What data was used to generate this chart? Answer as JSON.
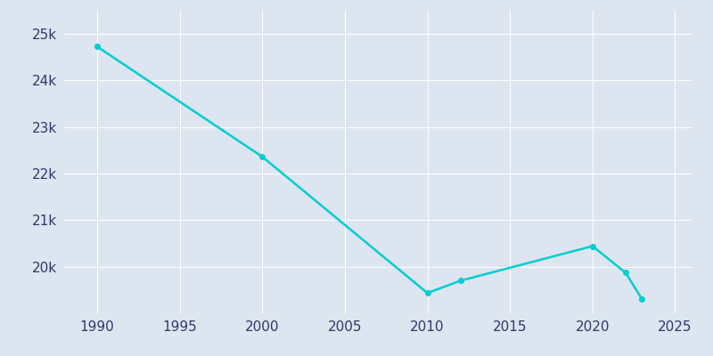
{
  "years": [
    1990,
    2000,
    2010,
    2012,
    2020,
    2022,
    2023
  ],
  "population": [
    24727,
    22362,
    19435,
    19700,
    20442,
    19872,
    19300
  ],
  "line_color": "#00CED1",
  "marker_color": "#00CED1",
  "background_color": "#dce5f0",
  "plot_bg_color": "#dce5f0",
  "grid_color": "#ffffff",
  "xlim": [
    1988,
    2026
  ],
  "ylim": [
    19000,
    25500
  ],
  "yticks": [
    20000,
    21000,
    22000,
    23000,
    24000,
    25000
  ],
  "ytick_labels": [
    "20k",
    "21k",
    "22k",
    "23k",
    "24k",
    "25k"
  ],
  "xticks": [
    1990,
    1995,
    2000,
    2005,
    2010,
    2015,
    2020,
    2025
  ],
  "tick_color": "#2d3a6b",
  "tick_fontsize": 11
}
